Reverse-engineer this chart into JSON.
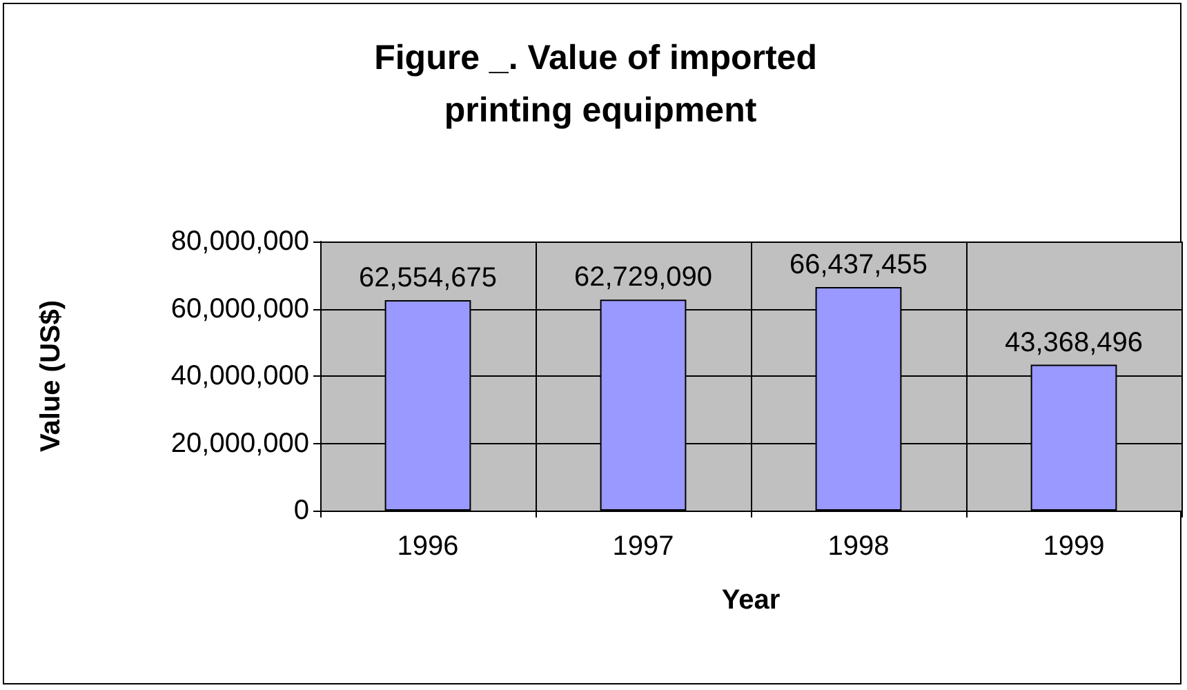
{
  "chart_data": {
    "type": "bar",
    "title": "Figure _. Value of imported printing equipment",
    "xlabel": "Year",
    "ylabel": "Value (US$)",
    "categories": [
      "1996",
      "1997",
      "1998",
      "1999"
    ],
    "values": [
      62554675,
      62729090,
      66437455,
      43368496
    ],
    "value_labels": [
      "62,554,675",
      "62,729,090",
      "66,437,455",
      "43,368,496"
    ],
    "color": "#9999ff",
    "ylim": [
      0,
      80000000
    ],
    "yticks": [
      0,
      {
        "value": 20000000,
        "label": "20,000,000"
      },
      {
        "value": 40000000,
        "label": "40,000,000"
      },
      {
        "value": 60000000,
        "label": "60,000,000"
      },
      {
        "value": 80000000,
        "label": "80,000,000"
      }
    ],
    "grid": true
  }
}
